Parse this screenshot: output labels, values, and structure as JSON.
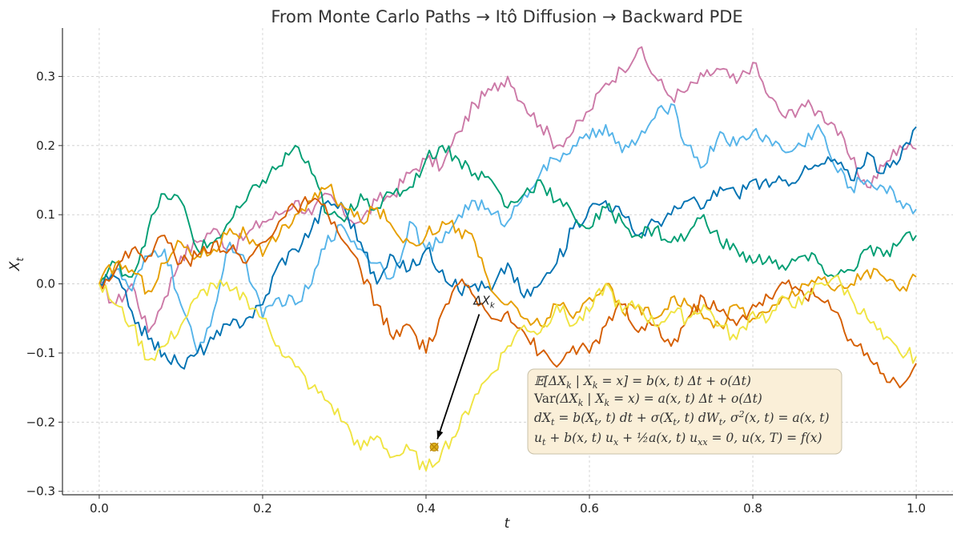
{
  "chart_data": {
    "type": "line",
    "title": "From Monte Carlo Paths → Itô Diffusion → Backward PDE",
    "xlabel": "t",
    "ylabel": "X_t",
    "xlim": [
      -0.045,
      1.045
    ],
    "ylim": [
      -0.305,
      0.37
    ],
    "xticks": [
      0.0,
      0.2,
      0.4,
      0.6,
      0.8,
      1.0
    ],
    "xtick_labels": [
      "0.0",
      "0.2",
      "0.4",
      "0.6",
      "0.8",
      "1.0"
    ],
    "yticks": [
      -0.3,
      -0.2,
      -0.1,
      0.0,
      0.1,
      0.2,
      0.3
    ],
    "ytick_labels": [
      "−0.3",
      "−0.2",
      "−0.1",
      "0.0",
      "0.1",
      "0.2",
      "0.3"
    ],
    "grid": true,
    "colors": [
      "#CC79A7",
      "#56B4E9",
      "#0072B2",
      "#009E73",
      "#E69F00",
      "#D55E00",
      "#F0E442"
    ],
    "series": [
      {
        "color": "#CC79A7",
        "x": [
          0.0,
          0.02,
          0.04,
          0.06,
          0.08,
          0.1,
          0.12,
          0.14,
          0.16,
          0.18,
          0.2,
          0.22,
          0.24,
          0.26,
          0.28,
          0.3,
          0.32,
          0.34,
          0.36,
          0.38,
          0.4,
          0.42,
          0.44,
          0.46,
          0.48,
          0.5,
          0.52,
          0.54,
          0.56,
          0.58,
          0.6,
          0.62,
          0.64,
          0.66,
          0.68,
          0.7,
          0.72,
          0.74,
          0.76,
          0.78,
          0.8,
          0.82,
          0.84,
          0.86,
          0.88,
          0.9,
          0.92,
          0.94,
          0.96,
          0.98,
          1.0
        ],
        "y": [
          0.0,
          -0.03,
          0.0,
          -0.07,
          -0.02,
          0.04,
          0.06,
          0.08,
          0.05,
          0.07,
          0.09,
          0.1,
          0.12,
          0.1,
          0.13,
          0.1,
          0.09,
          0.12,
          0.13,
          0.16,
          0.18,
          0.17,
          0.22,
          0.26,
          0.28,
          0.3,
          0.26,
          0.23,
          0.2,
          0.22,
          0.25,
          0.29,
          0.31,
          0.34,
          0.3,
          0.27,
          0.28,
          0.3,
          0.31,
          0.29,
          0.32,
          0.27,
          0.24,
          0.26,
          0.25,
          0.23,
          0.18,
          0.14,
          0.17,
          0.2,
          0.195
        ]
      },
      {
        "color": "#56B4E9",
        "x": [
          0.0,
          0.02,
          0.04,
          0.06,
          0.08,
          0.1,
          0.12,
          0.14,
          0.16,
          0.18,
          0.2,
          0.22,
          0.24,
          0.26,
          0.28,
          0.3,
          0.32,
          0.34,
          0.36,
          0.38,
          0.4,
          0.42,
          0.44,
          0.46,
          0.48,
          0.5,
          0.52,
          0.54,
          0.56,
          0.58,
          0.6,
          0.62,
          0.64,
          0.66,
          0.68,
          0.7,
          0.72,
          0.74,
          0.76,
          0.78,
          0.8,
          0.82,
          0.84,
          0.86,
          0.88,
          0.9,
          0.92,
          0.94,
          0.96,
          0.98,
          1.0
        ],
        "y": [
          0.0,
          0.02,
          -0.01,
          0.04,
          0.05,
          -0.03,
          -0.1,
          -0.04,
          0.06,
          0.03,
          -0.05,
          -0.02,
          -0.03,
          0.0,
          0.07,
          0.08,
          0.05,
          0.03,
          0.01,
          0.09,
          0.05,
          0.06,
          0.1,
          0.12,
          0.1,
          0.09,
          0.13,
          0.16,
          0.18,
          0.2,
          0.21,
          0.23,
          0.19,
          0.21,
          0.24,
          0.26,
          0.2,
          0.17,
          0.22,
          0.2,
          0.22,
          0.21,
          0.19,
          0.2,
          0.23,
          0.17,
          0.14,
          0.15,
          0.14,
          0.12,
          0.108
        ]
      },
      {
        "color": "#0072B2",
        "x": [
          0.0,
          0.02,
          0.04,
          0.06,
          0.08,
          0.1,
          0.12,
          0.14,
          0.16,
          0.18,
          0.2,
          0.22,
          0.24,
          0.26,
          0.28,
          0.3,
          0.32,
          0.34,
          0.36,
          0.38,
          0.4,
          0.42,
          0.44,
          0.46,
          0.48,
          0.5,
          0.52,
          0.54,
          0.56,
          0.58,
          0.6,
          0.62,
          0.64,
          0.66,
          0.68,
          0.7,
          0.72,
          0.74,
          0.76,
          0.78,
          0.8,
          0.82,
          0.84,
          0.86,
          0.88,
          0.9,
          0.92,
          0.94,
          0.96,
          0.98,
          1.0
        ],
        "y": [
          0.0,
          0.01,
          -0.04,
          -0.08,
          -0.1,
          -0.12,
          -0.1,
          -0.08,
          -0.06,
          -0.05,
          -0.03,
          0.03,
          0.05,
          0.08,
          0.12,
          0.11,
          0.06,
          0.0,
          0.04,
          0.02,
          0.05,
          0.02,
          -0.01,
          0.0,
          -0.01,
          0.03,
          -0.02,
          0.0,
          0.03,
          0.08,
          0.11,
          0.12,
          0.1,
          0.07,
          0.09,
          0.1,
          0.12,
          0.11,
          0.14,
          0.13,
          0.15,
          0.14,
          0.15,
          0.16,
          0.17,
          0.18,
          0.15,
          0.19,
          0.16,
          0.18,
          0.227
        ]
      },
      {
        "color": "#009E73",
        "x": [
          0.0,
          0.02,
          0.04,
          0.06,
          0.08,
          0.1,
          0.12,
          0.14,
          0.16,
          0.18,
          0.2,
          0.22,
          0.24,
          0.26,
          0.28,
          0.3,
          0.32,
          0.34,
          0.36,
          0.38,
          0.4,
          0.42,
          0.44,
          0.46,
          0.48,
          0.5,
          0.52,
          0.54,
          0.56,
          0.58,
          0.6,
          0.62,
          0.64,
          0.66,
          0.68,
          0.7,
          0.72,
          0.74,
          0.76,
          0.78,
          0.8,
          0.82,
          0.84,
          0.86,
          0.88,
          0.9,
          0.92,
          0.94,
          0.96,
          0.98,
          1.0
        ],
        "y": [
          0.0,
          0.03,
          0.01,
          0.08,
          0.13,
          0.12,
          0.05,
          0.06,
          0.09,
          0.12,
          0.15,
          0.17,
          0.2,
          0.16,
          0.1,
          0.09,
          0.13,
          0.11,
          0.13,
          0.14,
          0.18,
          0.2,
          0.18,
          0.16,
          0.15,
          0.11,
          0.13,
          0.15,
          0.12,
          0.1,
          0.08,
          0.11,
          0.09,
          0.07,
          0.08,
          0.06,
          0.07,
          0.1,
          0.06,
          0.05,
          0.03,
          0.04,
          0.02,
          0.04,
          0.03,
          0.01,
          0.02,
          0.05,
          0.04,
          0.06,
          0.07
        ]
      },
      {
        "color": "#E69F00",
        "x": [
          0.0,
          0.02,
          0.04,
          0.06,
          0.08,
          0.1,
          0.12,
          0.14,
          0.16,
          0.18,
          0.2,
          0.22,
          0.24,
          0.26,
          0.28,
          0.3,
          0.32,
          0.34,
          0.36,
          0.38,
          0.4,
          0.42,
          0.44,
          0.46,
          0.48,
          0.5,
          0.52,
          0.54,
          0.56,
          0.58,
          0.6,
          0.62,
          0.64,
          0.66,
          0.68,
          0.7,
          0.72,
          0.74,
          0.76,
          0.78,
          0.8,
          0.82,
          0.84,
          0.86,
          0.88,
          0.9,
          0.92,
          0.94,
          0.96,
          0.98,
          1.0
        ],
        "y": [
          0.0,
          0.03,
          0.02,
          -0.01,
          0.03,
          0.06,
          0.04,
          0.05,
          0.08,
          0.07,
          0.04,
          0.07,
          0.1,
          0.12,
          0.14,
          0.11,
          0.09,
          0.11,
          0.08,
          0.06,
          0.07,
          0.09,
          0.08,
          0.06,
          -0.01,
          -0.03,
          -0.05,
          -0.06,
          -0.03,
          -0.05,
          -0.02,
          0.0,
          -0.04,
          -0.03,
          -0.05,
          -0.02,
          -0.03,
          -0.05,
          -0.06,
          -0.03,
          -0.05,
          -0.04,
          -0.02,
          0.0,
          0.01,
          -0.01,
          0.0,
          0.02,
          0.01,
          -0.01,
          0.01
        ]
      },
      {
        "color": "#D55E00",
        "x": [
          0.0,
          0.02,
          0.04,
          0.06,
          0.08,
          0.1,
          0.12,
          0.14,
          0.16,
          0.18,
          0.2,
          0.22,
          0.24,
          0.26,
          0.28,
          0.3,
          0.32,
          0.34,
          0.36,
          0.38,
          0.4,
          0.42,
          0.44,
          0.46,
          0.48,
          0.5,
          0.52,
          0.54,
          0.56,
          0.58,
          0.6,
          0.62,
          0.64,
          0.66,
          0.68,
          0.7,
          0.72,
          0.74,
          0.76,
          0.78,
          0.8,
          0.82,
          0.84,
          0.86,
          0.88,
          0.9,
          0.92,
          0.94,
          0.96,
          0.98,
          1.0
        ],
        "y": [
          0.0,
          0.02,
          0.05,
          0.04,
          0.07,
          0.03,
          0.04,
          0.06,
          0.05,
          0.03,
          0.06,
          0.09,
          0.11,
          0.12,
          0.1,
          0.06,
          0.02,
          -0.03,
          -0.08,
          -0.06,
          -0.1,
          -0.04,
          0.0,
          -0.02,
          -0.05,
          -0.04,
          -0.07,
          -0.1,
          -0.12,
          -0.09,
          -0.1,
          -0.06,
          -0.03,
          -0.07,
          -0.06,
          -0.09,
          -0.05,
          -0.02,
          -0.04,
          -0.06,
          -0.03,
          -0.02,
          0.0,
          -0.01,
          -0.02,
          -0.04,
          -0.08,
          -0.1,
          -0.13,
          -0.15,
          -0.115
        ]
      },
      {
        "color": "#F0E442",
        "x": [
          0.0,
          0.02,
          0.04,
          0.06,
          0.08,
          0.1,
          0.12,
          0.14,
          0.16,
          0.18,
          0.2,
          0.22,
          0.24,
          0.26,
          0.28,
          0.3,
          0.32,
          0.34,
          0.36,
          0.38,
          0.4,
          0.42,
          0.44,
          0.46,
          0.48,
          0.5,
          0.52,
          0.54,
          0.56,
          0.58,
          0.6,
          0.62,
          0.64,
          0.66,
          0.68,
          0.7,
          0.72,
          0.74,
          0.76,
          0.78,
          0.8,
          0.82,
          0.84,
          0.86,
          0.88,
          0.9,
          0.92,
          0.94,
          0.96,
          0.98,
          1.0
        ],
        "y": [
          0.0,
          -0.03,
          -0.06,
          -0.11,
          -0.09,
          -0.06,
          -0.02,
          0.0,
          -0.01,
          -0.02,
          -0.05,
          -0.09,
          -0.12,
          -0.15,
          -0.17,
          -0.2,
          -0.24,
          -0.22,
          -0.25,
          -0.24,
          -0.27,
          -0.24,
          -0.21,
          -0.16,
          -0.13,
          -0.09,
          -0.06,
          -0.07,
          -0.03,
          -0.06,
          -0.04,
          0.0,
          -0.04,
          -0.03,
          -0.06,
          -0.04,
          -0.05,
          -0.03,
          -0.06,
          -0.08,
          -0.04,
          -0.05,
          -0.02,
          -0.03,
          0.0,
          0.01,
          -0.02,
          -0.05,
          -0.08,
          -0.1,
          -0.105
        ]
      }
    ],
    "annotation": {
      "text": "ΔX_k",
      "point": [
        0.41,
        -0.236
      ],
      "label_at": [
        0.468,
        -0.03
      ],
      "color": "#DFB31B"
    },
    "legend_box": {
      "lines": [
        "𝔼[ΔX_k | X_k = x] = b(x, t) Δt + o(Δt)",
        "Var(ΔX_k | X_k = x) = a(x, t) Δt + o(Δt)",
        "dX_t = b(X_t, t) dt + σ(X_t, t) dW_t,  σ²(x, t) = a(x, t)",
        "u_t + b(x, t) u_x + ½ a(x, t) u_xx = 0,    u(x, T) = f(x)"
      ],
      "placement": "bottom-right",
      "background": "#FAEFD8"
    }
  }
}
